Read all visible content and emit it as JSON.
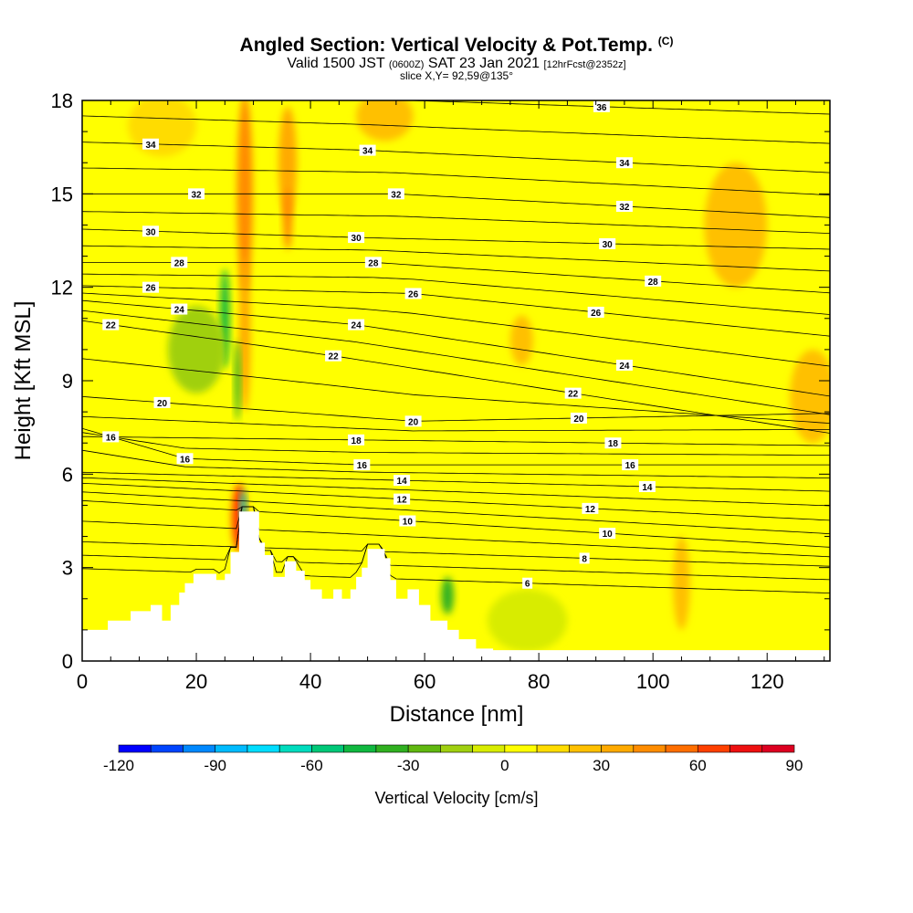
{
  "header": {
    "title_main": "Angled Section: Vertical Velocity & Pot.Temp.",
    "title_copyright": "(C)",
    "valid_prefix": "Valid 1500 JST",
    "valid_zulu": "(0600Z)",
    "valid_date": "SAT 23 Jan 2021",
    "valid_fcst": "[12hrFcst@2352z]",
    "slice": "slice X,Y= 92,59@135°"
  },
  "chart_data": {
    "type": "heatmap",
    "title": "Angled Section: Vertical Velocity & Pot.Temp.",
    "xlabel": "Distance [nm]",
    "ylabel": "Height [Kft MSL]",
    "xlim": [
      0,
      131
    ],
    "ylim": [
      0,
      18
    ],
    "x_ticks": [
      0,
      20,
      40,
      60,
      80,
      100,
      120
    ],
    "y_ticks": [
      0,
      3,
      6,
      9,
      12,
      15,
      18
    ],
    "colorbar": {
      "label": "Vertical Velocity [cm/s]",
      "range": [
        -120,
        90
      ],
      "step": 10,
      "tick_values": [
        -120,
        -90,
        -60,
        -30,
        0,
        30,
        60,
        90
      ],
      "colors": [
        "#0000ff",
        "#0044ff",
        "#0088ff",
        "#00bbff",
        "#00ddff",
        "#00dcbe",
        "#00c878",
        "#10b840",
        "#30b020",
        "#60b810",
        "#a0d010",
        "#d8ec00",
        "#ffff00",
        "#ffdc00",
        "#ffc000",
        "#ffaa00",
        "#ff8c00",
        "#ff6e00",
        "#ff4000",
        "#ee1010",
        "#dd0020",
        "#b8003c",
        "#960060",
        "#780080",
        "#5a0090"
      ]
    },
    "background_velocity": 5,
    "terrain": [
      [
        0,
        1.0
      ],
      [
        4.5,
        1.0
      ],
      [
        4.5,
        1.3
      ],
      [
        8.5,
        1.3
      ],
      [
        8.5,
        1.6
      ],
      [
        12,
        1.6
      ],
      [
        12,
        1.8
      ],
      [
        14,
        1.8
      ],
      [
        14,
        1.3
      ],
      [
        15.5,
        1.3
      ],
      [
        15.5,
        1.8
      ],
      [
        17,
        1.8
      ],
      [
        17,
        2.2
      ],
      [
        18,
        2.2
      ],
      [
        18,
        2.5
      ],
      [
        19.5,
        2.5
      ],
      [
        19.5,
        2.8
      ],
      [
        23.5,
        2.8
      ],
      [
        23.5,
        2.6
      ],
      [
        25,
        2.6
      ],
      [
        25,
        2.8
      ],
      [
        26,
        2.8
      ],
      [
        26,
        3.5
      ],
      [
        27.5,
        3.5
      ],
      [
        27.5,
        4.8
      ],
      [
        31,
        4.8
      ],
      [
        31,
        3.8
      ],
      [
        32,
        3.8
      ],
      [
        32,
        3.4
      ],
      [
        33.5,
        3.4
      ],
      [
        33.5,
        2.7
      ],
      [
        35.5,
        2.7
      ],
      [
        35.5,
        3.2
      ],
      [
        37.5,
        3.2
      ],
      [
        37.5,
        2.9
      ],
      [
        39,
        2.9
      ],
      [
        39,
        2.6
      ],
      [
        40,
        2.6
      ],
      [
        40,
        2.3
      ],
      [
        42,
        2.3
      ],
      [
        42,
        2.0
      ],
      [
        44,
        2.0
      ],
      [
        44,
        2.3
      ],
      [
        45.5,
        2.3
      ],
      [
        45.5,
        2.0
      ],
      [
        47,
        2.0
      ],
      [
        47,
        2.3
      ],
      [
        48,
        2.3
      ],
      [
        48,
        2.7
      ],
      [
        49,
        2.7
      ],
      [
        49,
        3.0
      ],
      [
        50,
        3.0
      ],
      [
        50,
        3.6
      ],
      [
        53,
        3.6
      ],
      [
        53,
        3.3
      ],
      [
        54,
        3.3
      ],
      [
        54,
        2.6
      ],
      [
        55,
        2.6
      ],
      [
        55,
        2.0
      ],
      [
        57,
        2.0
      ],
      [
        57,
        2.3
      ],
      [
        59,
        2.3
      ],
      [
        59,
        1.8
      ],
      [
        61,
        1.8
      ],
      [
        61,
        1.3
      ],
      [
        64,
        1.3
      ],
      [
        64,
        1.0
      ],
      [
        66,
        1.0
      ],
      [
        66,
        0.7
      ],
      [
        69,
        0.7
      ],
      [
        69,
        0.4
      ],
      [
        72,
        0.4
      ],
      [
        72,
        0.35
      ],
      [
        131,
        0.35
      ],
      [
        131,
        0
      ]
    ],
    "velocity_blobs": [
      {
        "x": 27.5,
        "y": 4.6,
        "rx": 1.3,
        "ry": 1.1,
        "v": 65
      },
      {
        "x": 28.2,
        "y": 4.9,
        "rx": 0.5,
        "ry": 0.6,
        "v": -65
      },
      {
        "x": 28.5,
        "y": 15.0,
        "rx": 1.4,
        "ry": 3.2,
        "v": 40
      },
      {
        "x": 28.5,
        "y": 10.5,
        "rx": 1.0,
        "ry": 2.5,
        "v": 30
      },
      {
        "x": 36.0,
        "y": 16.0,
        "rx": 1.6,
        "ry": 1.8,
        "v": 30
      },
      {
        "x": 36.0,
        "y": 14.2,
        "rx": 0.8,
        "ry": 1.0,
        "v": 40
      },
      {
        "x": 25.0,
        "y": 11.0,
        "rx": 0.8,
        "ry": 1.6,
        "v": -50
      },
      {
        "x": 27.2,
        "y": 9.0,
        "rx": 0.5,
        "ry": 1.3,
        "v": -40
      },
      {
        "x": 64.0,
        "y": 2.1,
        "rx": 1.1,
        "ry": 0.6,
        "v": -35
      },
      {
        "x": 114.5,
        "y": 14.0,
        "rx": 5.5,
        "ry": 2.0,
        "v": 20
      },
      {
        "x": 128.0,
        "y": 8.5,
        "rx": 4.0,
        "ry": 1.5,
        "v": 20
      },
      {
        "x": 20.0,
        "y": 10.0,
        "rx": 5.0,
        "ry": 1.4,
        "v": -15
      },
      {
        "x": 78.0,
        "y": 1.3,
        "rx": 7.0,
        "ry": 1.0,
        "v": -10
      },
      {
        "x": 105.0,
        "y": 2.5,
        "rx": 1.5,
        "ry": 1.5,
        "v": 20
      },
      {
        "x": 77.0,
        "y": 10.3,
        "rx": 2.0,
        "ry": 0.8,
        "v": 20
      },
      {
        "x": 53.0,
        "y": 17.5,
        "rx": 5.0,
        "ry": 0.8,
        "v": 20
      },
      {
        "x": 14.0,
        "y": 17.2,
        "rx": 6.0,
        "ry": 1.0,
        "v": 15
      }
    ],
    "contour_labels": [
      {
        "text": "36",
        "x": 91,
        "y": 17.8
      },
      {
        "text": "34",
        "x": 12,
        "y": 16.6
      },
      {
        "text": "34",
        "x": 50,
        "y": 16.4
      },
      {
        "text": "34",
        "x": 95,
        "y": 16.0
      },
      {
        "text": "32",
        "x": 20,
        "y": 15.0
      },
      {
        "text": "32",
        "x": 55,
        "y": 15.0
      },
      {
        "text": "32",
        "x": 95,
        "y": 14.6
      },
      {
        "text": "30",
        "x": 12,
        "y": 13.8
      },
      {
        "text": "30",
        "x": 48,
        "y": 13.6
      },
      {
        "text": "30",
        "x": 92,
        "y": 13.4
      },
      {
        "text": "28",
        "x": 17,
        "y": 12.8
      },
      {
        "text": "28",
        "x": 51,
        "y": 12.8
      },
      {
        "text": "28",
        "x": 100,
        "y": 12.2
      },
      {
        "text": "26",
        "x": 12,
        "y": 12.0
      },
      {
        "text": "26",
        "x": 58,
        "y": 11.8
      },
      {
        "text": "26",
        "x": 90,
        "y": 11.2
      },
      {
        "text": "24",
        "x": 17,
        "y": 11.3
      },
      {
        "text": "24",
        "x": 48,
        "y": 10.8
      },
      {
        "text": "24",
        "x": 95,
        "y": 9.5
      },
      {
        "text": "22",
        "x": 5,
        "y": 10.8
      },
      {
        "text": "22",
        "x": 44,
        "y": 9.8
      },
      {
        "text": "22",
        "x": 86,
        "y": 8.6
      },
      {
        "text": "20",
        "x": 14,
        "y": 8.3
      },
      {
        "text": "20",
        "x": 58,
        "y": 7.7
      },
      {
        "text": "20",
        "x": 87,
        "y": 7.8
      },
      {
        "text": "18",
        "x": 48,
        "y": 7.1
      },
      {
        "text": "18",
        "x": 93,
        "y": 7.0
      },
      {
        "text": "16",
        "x": 5,
        "y": 7.2
      },
      {
        "text": "16",
        "x": 18,
        "y": 6.5
      },
      {
        "text": "16",
        "x": 49,
        "y": 6.3
      },
      {
        "text": "16",
        "x": 96,
        "y": 6.3
      },
      {
        "text": "14",
        "x": 56,
        "y": 5.8
      },
      {
        "text": "14",
        "x": 99,
        "y": 5.6
      },
      {
        "text": "12",
        "x": 56,
        "y": 5.2
      },
      {
        "text": "12",
        "x": 89,
        "y": 4.9
      },
      {
        "text": "10",
        "x": 57,
        "y": 4.5
      },
      {
        "text": "10",
        "x": 92,
        "y": 4.1
      },
      {
        "text": "8",
        "x": 88,
        "y": 3.3
      },
      {
        "text": "6",
        "x": 78,
        "y": 2.5
      }
    ]
  }
}
